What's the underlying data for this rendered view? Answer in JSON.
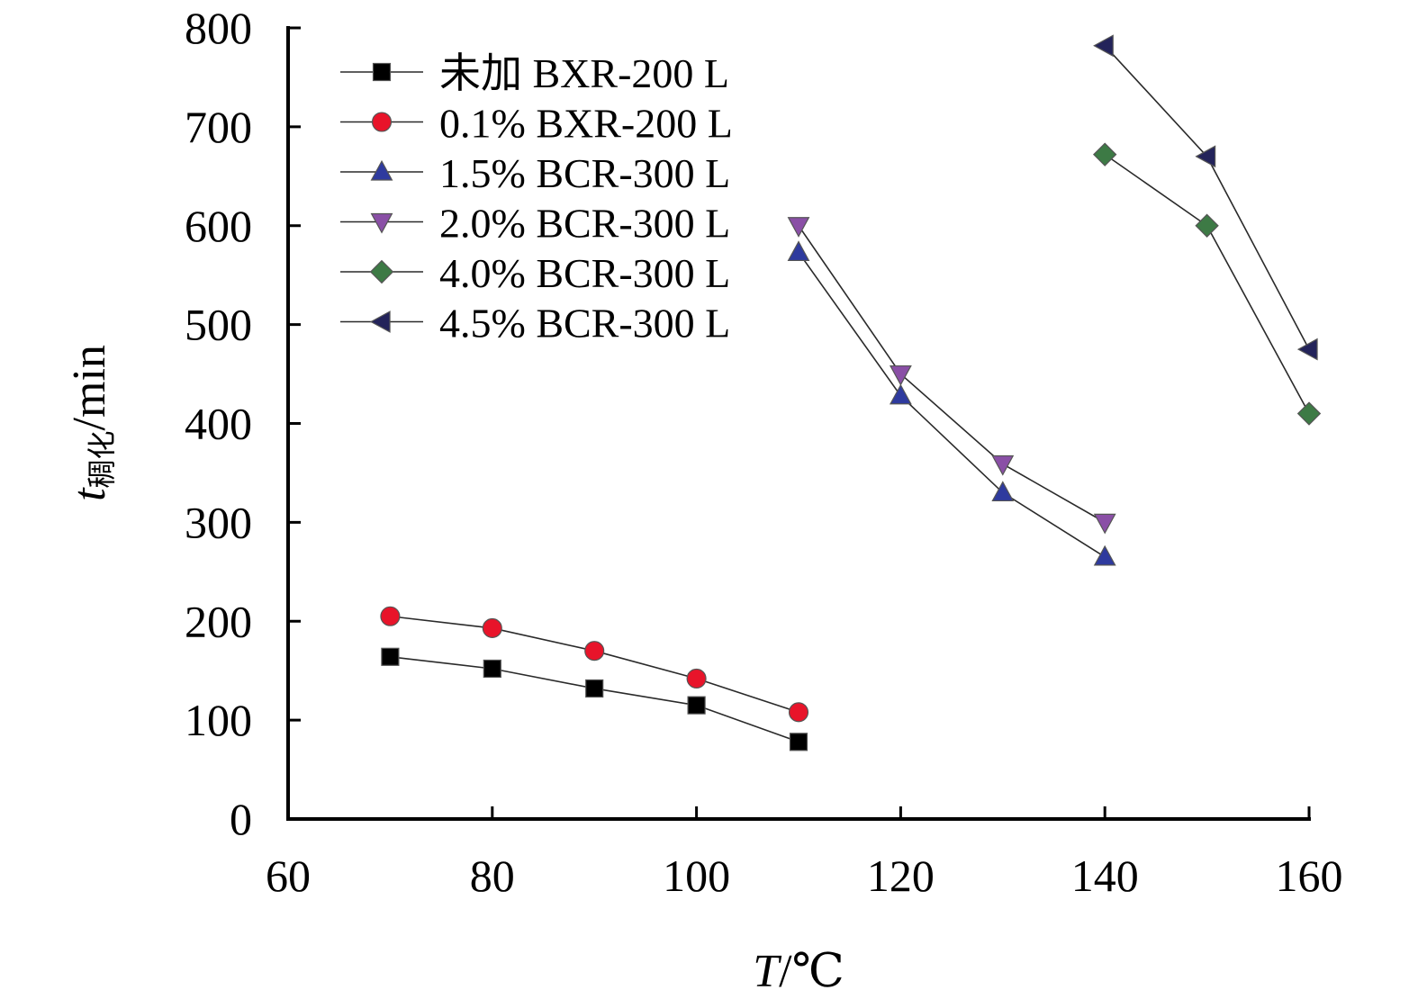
{
  "chart_data": {
    "type": "line",
    "xlabel": {
      "main": "T",
      "unit": "/℃"
    },
    "ylabel": {
      "main": "t",
      "sub": "稠化",
      "unit": "/min"
    },
    "xlim": [
      60,
      160
    ],
    "ylim": [
      0,
      800
    ],
    "xticks": [
      60,
      80,
      100,
      120,
      140,
      160
    ],
    "yticks": [
      0,
      100,
      200,
      300,
      400,
      500,
      600,
      700,
      800
    ],
    "grid": false,
    "legend_position": "top-left",
    "series": [
      {
        "name": "未加 BXR-200 L",
        "marker": "square",
        "color": "#000000",
        "x": [
          70,
          80,
          90,
          100,
          110
        ],
        "y": [
          164,
          152,
          132,
          115,
          78
        ]
      },
      {
        "name": "0.1% BXR-200 L",
        "marker": "circle",
        "color": "#e8142a",
        "x": [
          70,
          80,
          90,
          100,
          110
        ],
        "y": [
          205,
          193,
          170,
          142,
          108
        ]
      },
      {
        "name": "1.5% BCR-300 L",
        "marker": "triangle-up",
        "color": "#2e3a9e",
        "x": [
          110,
          120,
          130,
          140
        ],
        "y": [
          573,
          428,
          330,
          265
        ]
      },
      {
        "name": "2.0% BCR-300 L",
        "marker": "triangle-down",
        "color": "#8a4fa6",
        "x": [
          110,
          120,
          130,
          140
        ],
        "y": [
          600,
          450,
          359,
          300
        ]
      },
      {
        "name": "4.0% BCR-300 L",
        "marker": "diamond",
        "color": "#3d7a45",
        "x": [
          140,
          150,
          160
        ],
        "y": [
          672,
          600,
          410
        ]
      },
      {
        "name": "4.5% BCR-300 L",
        "marker": "triangle-left",
        "color": "#23235a",
        "x": [
          140,
          150,
          160
        ],
        "y": [
          782,
          670,
          475
        ]
      }
    ]
  }
}
